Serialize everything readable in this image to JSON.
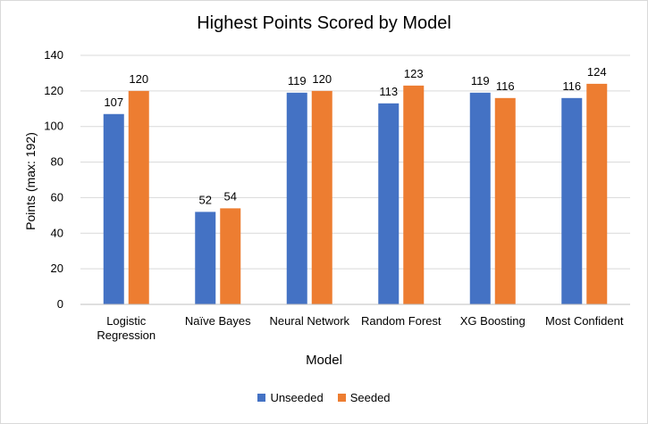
{
  "chart_data": {
    "type": "bar",
    "title": "Highest Points Scored by Model",
    "xlabel": "Model",
    "ylabel": "Points (max: 192)",
    "categories": [
      [
        "Logistic",
        "Regression"
      ],
      [
        "Naïve Bayes"
      ],
      [
        "Neural Network"
      ],
      [
        "Random Forest"
      ],
      [
        "XG Boosting"
      ],
      [
        "Most Confident"
      ]
    ],
    "series": [
      {
        "name": "Unseeded",
        "color": "#4472c4",
        "values": [
          107,
          52,
          119,
          113,
          119,
          116
        ]
      },
      {
        "name": "Seeded",
        "color": "#ed7d31",
        "values": [
          120,
          54,
          120,
          123,
          116,
          124
        ]
      }
    ],
    "ylim": [
      0,
      140
    ],
    "yticks": [
      0,
      20,
      40,
      60,
      80,
      100,
      120,
      140
    ],
    "grid": true,
    "data_labels": true,
    "legend": "bottom"
  }
}
